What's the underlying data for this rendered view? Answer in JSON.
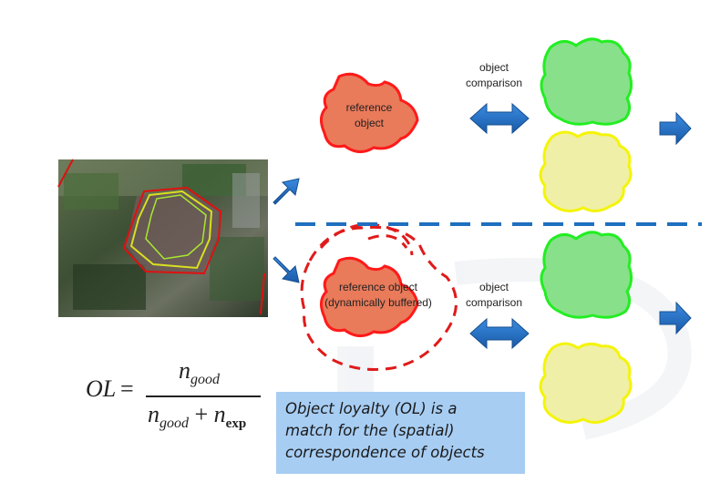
{
  "top_row": {
    "reference_label_line1": "reference",
    "reference_label_line2": "object",
    "comparison_label_line1": "object",
    "comparison_label_line2": "comparison"
  },
  "bottom_row": {
    "reference_label_line1": "reference object",
    "reference_label_line2": "(dynamically buffered)",
    "comparison_label_line1": "object",
    "comparison_label_line2": "comparison"
  },
  "formula": {
    "lhs": "OL",
    "equals": "=",
    "numerator_var": "n",
    "numerator_sub": "good",
    "denominator_var1": "n",
    "denominator_sub1": "good",
    "plus": "+",
    "denominator_var2": "n",
    "denominator_sub2": "exp"
  },
  "note": {
    "line1": "Object loyalty (OL) is a",
    "line2": "match for the (spatial)",
    "line3": "correspondence of objects"
  },
  "colors": {
    "reference_fill": "#e97a5a",
    "reference_stroke": "#ff1a1a",
    "match_fill": "#88e08a",
    "match_stroke": "#22ee22",
    "candidate_fill": "#efefa8",
    "candidate_stroke": "#f4f40a",
    "arrow_blue": "#1f6fc0",
    "dash_blue": "#1f6fc0",
    "note_bg": "#a7cdf3"
  }
}
